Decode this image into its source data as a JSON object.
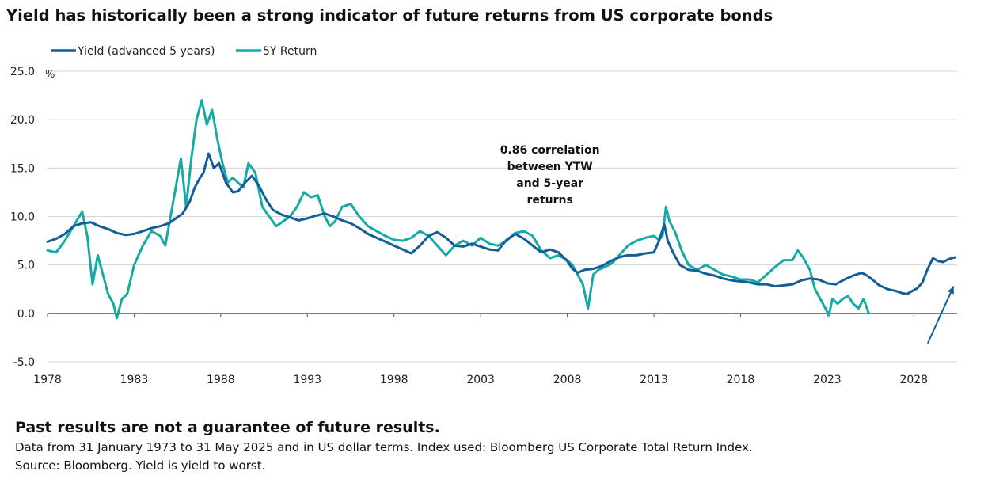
{
  "title": "Yield has historically been a strong indicator of future returns from US corporate bonds",
  "footnote": {
    "heading": "Past results are not a guarantee of future results.",
    "line1": "Data from 31 January 1973 to 31 May 2025 and in US dollar terms. Index used: Bloomberg US Corporate Total Return Index.",
    "line2": "Source: Bloomberg. Yield is yield to worst."
  },
  "colors": {
    "yield": "#135e96",
    "return": "#16aaa5",
    "grid": "#d4d4d4",
    "axis": "#555555"
  },
  "chart_data": {
    "type": "line",
    "unit": "%",
    "xlim": [
      1978,
      2030.5
    ],
    "ylim": [
      -5,
      25
    ],
    "x_ticks": [
      1978,
      1983,
      1988,
      1993,
      1998,
      2003,
      2008,
      2013,
      2018,
      2023,
      2028
    ],
    "y_ticks": [
      -5.0,
      0.0,
      5.0,
      10.0,
      15.0,
      20.0,
      25.0
    ],
    "y_tick_labels": [
      "-5.0",
      "0.0",
      "5.0",
      "10.0",
      "15.0",
      "20.0",
      "25.0"
    ],
    "grid": "horizontal",
    "legend": "top-left",
    "annotation": {
      "lines": [
        "0.86 correlation",
        "between YTW",
        "and 5-year",
        "returns"
      ],
      "x": 2007,
      "y": 16.5
    },
    "arrow": {
      "from": [
        2028.8,
        -3.1
      ],
      "to": [
        2030.3,
        2.8
      ]
    },
    "series": [
      {
        "name": "Yield (advanced 5 years)",
        "key": "yield",
        "x": [
          1978.0,
          1978.5,
          1979.0,
          1979.5,
          1980.0,
          1980.5,
          1981.0,
          1981.5,
          1982.0,
          1982.5,
          1983.0,
          1983.5,
          1984.0,
          1984.5,
          1985.0,
          1985.4,
          1985.8,
          1986.2,
          1986.5,
          1986.8,
          1987.0,
          1987.3,
          1987.6,
          1987.9,
          1988.3,
          1988.7,
          1989.0,
          1989.4,
          1989.8,
          1990.2,
          1990.6,
          1991.0,
          1991.5,
          1992.0,
          1992.5,
          1993.0,
          1993.5,
          1994.0,
          1994.5,
          1995.0,
          1995.5,
          1996.0,
          1996.5,
          1997.0,
          1997.5,
          1998.0,
          1998.5,
          1999.0,
          1999.5,
          2000.0,
          2000.5,
          2001.0,
          2001.5,
          2002.0,
          2002.5,
          2003.0,
          2003.5,
          2004.0,
          2004.5,
          2005.0,
          2005.5,
          2006.0,
          2006.5,
          2007.0,
          2007.5,
          2008.0,
          2008.3,
          2008.6,
          2009.0,
          2009.5,
          2010.0,
          2010.5,
          2011.0,
          2011.5,
          2012.0,
          2012.5,
          2013.0,
          2013.3,
          2013.6,
          2013.8,
          2014.1,
          2014.5,
          2015.0,
          2015.5,
          2016.0,
          2016.5,
          2017.0,
          2017.5,
          2018.0,
          2018.5,
          2019.0,
          2019.5,
          2020.0,
          2020.5,
          2021.0,
          2021.5,
          2022.0,
          2022.5,
          2023.0,
          2023.5,
          2024.0,
          2024.5,
          2025.0,
          2025.3,
          2025.6,
          2026.0,
          2026.5,
          2027.0,
          2027.3,
          2027.6,
          2027.9,
          2028.2,
          2028.5,
          2028.8,
          2029.1,
          2029.4,
          2029.7,
          2030.0,
          2030.4
        ],
        "y": [
          7.4,
          7.7,
          8.2,
          9.0,
          9.3,
          9.4,
          9.0,
          8.7,
          8.3,
          8.1,
          8.2,
          8.5,
          8.8,
          9.0,
          9.3,
          9.8,
          10.3,
          11.5,
          13.0,
          14.0,
          14.5,
          16.5,
          15.0,
          15.5,
          13.5,
          12.5,
          12.6,
          13.5,
          14.2,
          13.2,
          11.8,
          10.7,
          10.2,
          9.9,
          9.6,
          9.8,
          10.1,
          10.3,
          10.0,
          9.6,
          9.3,
          8.8,
          8.2,
          7.8,
          7.4,
          7.0,
          6.6,
          6.2,
          7.0,
          8.0,
          8.4,
          7.8,
          7.0,
          6.9,
          7.2,
          6.9,
          6.6,
          6.5,
          7.6,
          8.2,
          7.7,
          7.0,
          6.3,
          6.6,
          6.3,
          5.4,
          4.6,
          4.2,
          4.5,
          4.6,
          4.9,
          5.4,
          5.8,
          6.0,
          6.0,
          6.2,
          6.3,
          7.5,
          9.2,
          7.5,
          6.3,
          5.0,
          4.5,
          4.4,
          4.1,
          3.9,
          3.6,
          3.4,
          3.3,
          3.2,
          3.0,
          3.0,
          2.8,
          2.9,
          3.0,
          3.4,
          3.6,
          3.5,
          3.1,
          3.0,
          3.5,
          3.9,
          4.2,
          3.9,
          3.5,
          2.9,
          2.5,
          2.3,
          2.1,
          2.0,
          2.3,
          2.6,
          3.2,
          4.6,
          5.7,
          5.4,
          5.3,
          5.6,
          5.8
        ]
      },
      {
        "name": "5Y Return",
        "key": "return",
        "x": [
          1978.0,
          1978.5,
          1979.0,
          1979.5,
          1980.0,
          1980.3,
          1980.6,
          1980.9,
          1981.2,
          1981.5,
          1981.8,
          1982.0,
          1982.3,
          1982.6,
          1983.0,
          1983.5,
          1984.0,
          1984.5,
          1984.8,
          1985.1,
          1985.4,
          1985.7,
          1986.0,
          1986.3,
          1986.6,
          1986.9,
          1987.2,
          1987.5,
          1987.8,
          1988.1,
          1988.4,
          1988.7,
          1989.0,
          1989.3,
          1989.6,
          1990.0,
          1990.4,
          1990.8,
          1991.2,
          1991.6,
          1992.0,
          1992.4,
          1992.8,
          1993.2,
          1993.6,
          1994.0,
          1994.3,
          1994.6,
          1995.0,
          1995.5,
          1996.0,
          1996.5,
          1997.0,
          1997.5,
          1998.0,
          1998.5,
          1999.0,
          1999.5,
          2000.0,
          2000.5,
          2001.0,
          2001.5,
          2002.0,
          2002.5,
          2003.0,
          2003.5,
          2004.0,
          2004.5,
          2005.0,
          2005.5,
          2006.0,
          2006.5,
          2007.0,
          2007.5,
          2008.0,
          2008.3,
          2008.6,
          2008.9,
          2009.2,
          2009.5,
          2009.8,
          2010.2,
          2010.6,
          2011.0,
          2011.5,
          2012.0,
          2012.5,
          2013.0,
          2013.3,
          2013.5,
          2013.7,
          2013.9,
          2014.2,
          2014.6,
          2015.0,
          2015.5,
          2016.0,
          2016.5,
          2017.0,
          2017.5,
          2018.0,
          2018.5,
          2019.0,
          2019.5,
          2020.0,
          2020.5,
          2021.0,
          2021.3,
          2021.6,
          2022.0,
          2022.3,
          2022.6,
          2022.9,
          2023.1,
          2023.3,
          2023.6,
          2023.9,
          2024.2,
          2024.5,
          2024.8,
          2025.1,
          2025.4
        ],
        "y": [
          6.5,
          6.3,
          7.5,
          9.0,
          10.5,
          8.0,
          3.0,
          6.0,
          4.0,
          2.0,
          1.0,
          -0.5,
          1.5,
          2.0,
          5.0,
          7.0,
          8.5,
          8.0,
          7.0,
          10.0,
          13.0,
          16.0,
          11.0,
          16.0,
          20.0,
          22.0,
          19.5,
          21.0,
          18.0,
          15.5,
          13.5,
          14.0,
          13.5,
          13.0,
          15.5,
          14.5,
          11.0,
          10.0,
          9.0,
          9.5,
          10.0,
          11.0,
          12.5,
          12.0,
          12.2,
          10.0,
          9.0,
          9.5,
          11.0,
          11.3,
          10.0,
          9.0,
          8.5,
          8.0,
          7.6,
          7.5,
          7.8,
          8.5,
          8.0,
          7.0,
          6.0,
          7.0,
          7.5,
          7.0,
          7.8,
          7.2,
          7.0,
          7.5,
          8.3,
          8.5,
          8.0,
          6.5,
          5.7,
          6.0,
          5.5,
          5.0,
          4.0,
          3.0,
          0.5,
          4.0,
          4.5,
          4.8,
          5.2,
          6.0,
          7.0,
          7.5,
          7.8,
          8.0,
          7.6,
          8.0,
          11.0,
          9.5,
          8.5,
          6.5,
          5.0,
          4.5,
          5.0,
          4.5,
          4.0,
          3.8,
          3.5,
          3.5,
          3.2,
          4.0,
          4.8,
          5.5,
          5.5,
          6.5,
          5.8,
          4.5,
          2.5,
          1.5,
          0.5,
          -0.2,
          1.5,
          1.0,
          1.5,
          1.8,
          1.0,
          0.5,
          1.5,
          0.0
        ]
      }
    ]
  }
}
